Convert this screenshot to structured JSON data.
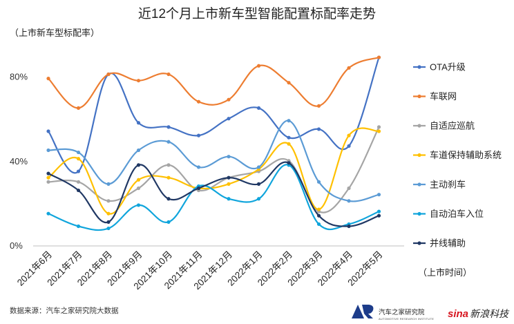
{
  "chart_data": {
    "type": "line",
    "title": "近12个月上市新车型智能配置标配率走势",
    "ylabel": "（上市新车型标配率）",
    "xlabel": "（上市时间）",
    "ylim": [
      0,
      90
    ],
    "yticks": [
      0,
      40,
      80
    ],
    "ytick_labels": [
      "0%",
      "40%",
      "80%"
    ],
    "categories": [
      "2021年6月",
      "2021年7月",
      "2021年8月",
      "2021年9月",
      "2021年10月",
      "2021年11月",
      "2021年12月",
      "2022年1月",
      "2022年2月",
      "2022年3月",
      "2022年4月",
      "2022年5月"
    ],
    "series": [
      {
        "name": "OTA升级",
        "color": "#4472c4",
        "values": [
          54,
          35,
          81,
          58,
          56,
          52,
          60,
          65,
          51,
          55,
          47,
          89
        ]
      },
      {
        "name": "车联网",
        "color": "#ed7d31",
        "values": [
          79,
          65,
          81,
          78,
          81,
          68,
          69,
          85,
          77,
          66,
          84,
          89
        ]
      },
      {
        "name": "自适应巡航",
        "color": "#a5a5a5",
        "values": [
          30,
          30,
          21,
          27,
          38,
          26,
          32,
          35,
          40,
          16,
          27,
          56
        ]
      },
      {
        "name": "车道保持辅助系统",
        "color": "#ffc000",
        "values": [
          32,
          41,
          15,
          31,
          32,
          27,
          29,
          36,
          48,
          17,
          52,
          54
        ]
      },
      {
        "name": "主动刹车",
        "color": "#5b9bd5",
        "values": [
          45,
          44,
          29,
          45,
          49,
          37,
          42,
          37,
          59,
          30,
          21,
          24
        ]
      },
      {
        "name": "自动泊车入位",
        "color": "#10a5dc",
        "values": [
          15,
          9,
          8,
          19,
          11,
          28,
          22,
          22,
          38,
          10,
          10,
          16
        ]
      },
      {
        "name": "并线辅助",
        "color": "#203864",
        "values": [
          34,
          26,
          11,
          38,
          22,
          27,
          32,
          29,
          39,
          14,
          9,
          14
        ]
      }
    ]
  },
  "footer": {
    "source": "数据来源：汽车之家研究院大数据",
    "brand_name": "汽车之家研究院",
    "brand_sub": "AUTOMOTIVE RESEARCH INSTITUTE",
    "sina_logo_mark": "sina",
    "sina_name": "新浪科技"
  }
}
